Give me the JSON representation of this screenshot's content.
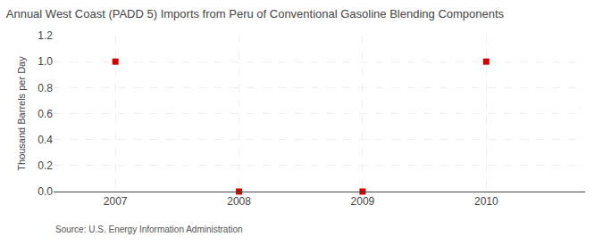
{
  "chart_data": {
    "type": "scatter",
    "title": "Annual West Coast (PADD 5) Imports from Peru of Conventional Gasoline Blending Components",
    "ylabel": "Thousand Barrels per Day",
    "source": "Source: U.S. Energy Information Administration",
    "x": [
      2007,
      2008,
      2009,
      2010
    ],
    "values": [
      1.0,
      0.0,
      0.0,
      1.0
    ],
    "xlim": [
      2006.5,
      2010.8
    ],
    "ylim": [
      0.0,
      1.2
    ],
    "xticks": [
      2007,
      2008,
      2009,
      2010
    ],
    "yticks": [
      {
        "value": 0.0,
        "label": "0.0"
      },
      0.2,
      0.4,
      0.6,
      0.8,
      {
        "value": 1.0,
        "label": "1.0"
      },
      1.2
    ],
    "color": "#cc0000",
    "marker": "square",
    "grid": true
  }
}
